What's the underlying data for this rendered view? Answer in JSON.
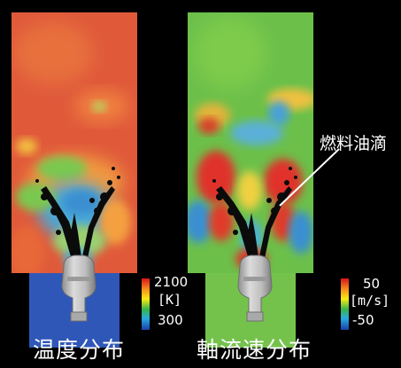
{
  "panels": [
    {
      "title": "温度分布",
      "scale": {
        "max": "2100",
        "unit": "[K]",
        "min": "300"
      },
      "palette": {
        "dominant": "#e35a3a",
        "secondary": "#f0a040",
        "cool": "#4aa8d8",
        "pocket": "#78c850",
        "floor": "#2f57b8"
      }
    },
    {
      "title": "軸流速分布",
      "scale": {
        "max": "50",
        "unit": "[m/s]",
        "min": "-50"
      },
      "palette": {
        "dominant": "#6cc04a",
        "secondary": "#a8d84a",
        "hot": "#e0322a",
        "cool": "#3a8fd0",
        "floor": "#74c24c"
      }
    }
  ],
  "annotation": {
    "text": "燃料油滴"
  },
  "colors": {
    "background": "#000000",
    "text": "#ffffff",
    "injector": "#b9b9b9",
    "droplets": "#0b0b0b"
  }
}
